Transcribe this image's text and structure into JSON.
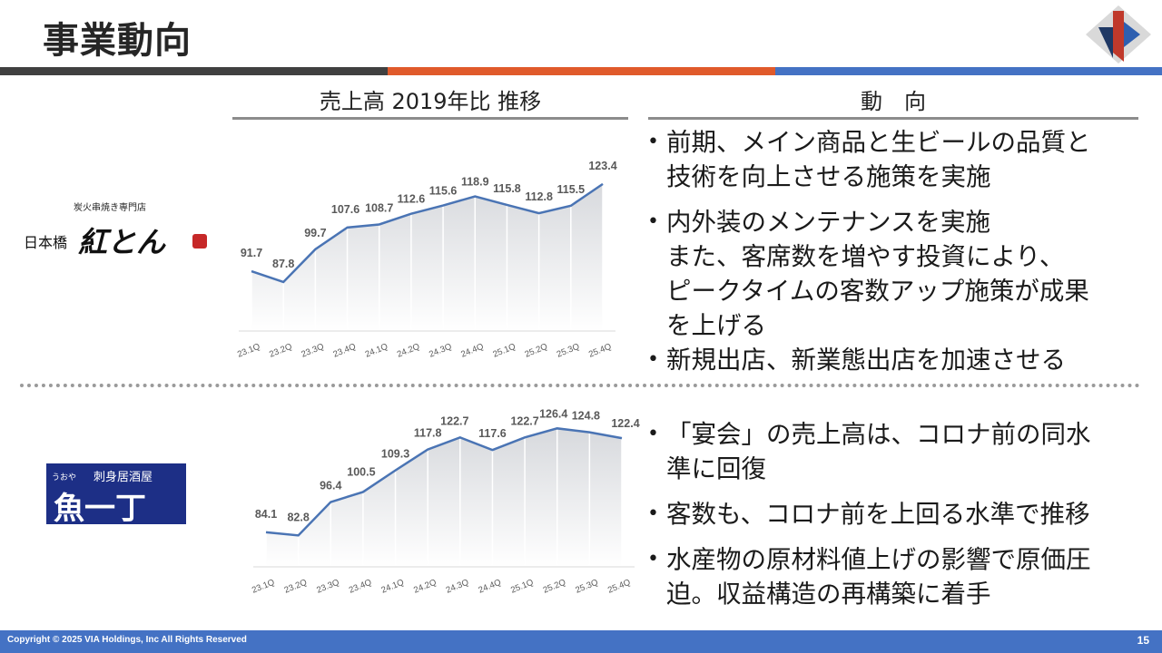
{
  "page": {
    "title": "事業動向",
    "copyright": "Copyright © 2025 VIA Holdings, Inc All Rights Reserved",
    "page_number": "15"
  },
  "colors": {
    "gray_bar": "#404040",
    "orange_bar": "#e05a2b",
    "blue_bar": "#4472c4",
    "line": "#4a74b4"
  },
  "sections": {
    "chart_header": "売上高 2019年比 推移",
    "trend_header": "動　向"
  },
  "brands": {
    "brand1": {
      "subtitle": "炭火串焼き専門店",
      "prefix": "日本橋",
      "name": "紅とん"
    },
    "brand2": {
      "subtitle": "刺身居酒屋",
      "furigana": "うおや",
      "name": "魚一丁"
    }
  },
  "bullets_top": [
    {
      "lines": [
        "前期、メイン商品と生ビールの品質と",
        "技術を向上させる施策を実施"
      ]
    },
    {
      "lines": [
        "内外装のメンテナンスを実施",
        "また、客席数を増やす投資により、",
        "ピークタイムの客数アップ施策が成果",
        "を上げる"
      ]
    },
    {
      "lines": [
        "新規出店、新業態出店を加速させる"
      ]
    }
  ],
  "bullets_bottom": [
    {
      "lines": [
        "「宴会」の売上高は、コロナ前の同水",
        "準に回復"
      ]
    },
    {
      "lines": [
        "客数も、コロナ前を上回る水準で推移"
      ]
    },
    {
      "lines": [
        "水産物の原材料値上げの影響で原価圧",
        "迫。収益構造の再構築に着手"
      ]
    }
  ],
  "chart_data": [
    {
      "type": "area",
      "categories": [
        "23.1Q",
        "23.2Q",
        "23.3Q",
        "23.4Q",
        "24.1Q",
        "24.2Q",
        "24.3Q",
        "24.4Q",
        "25.1Q",
        "25.2Q",
        "25.3Q",
        "25.4Q"
      ],
      "values": [
        91.7,
        87.8,
        99.7,
        107.6,
        108.7,
        112.6,
        115.6,
        118.9,
        115.8,
        112.8,
        115.5,
        123.4
      ],
      "ylim": [
        70,
        125
      ]
    },
    {
      "type": "area",
      "categories": [
        "23.1Q",
        "23.2Q",
        "23.3Q",
        "23.4Q",
        "24.1Q",
        "24.2Q",
        "24.3Q",
        "24.4Q",
        "25.1Q",
        "25.2Q",
        "25.3Q",
        "25.4Q"
      ],
      "values": [
        84.1,
        82.8,
        96.4,
        100.5,
        109.3,
        117.8,
        122.7,
        117.6,
        122.7,
        126.4,
        124.8,
        122.4
      ],
      "ylim": [
        70,
        128
      ]
    }
  ]
}
